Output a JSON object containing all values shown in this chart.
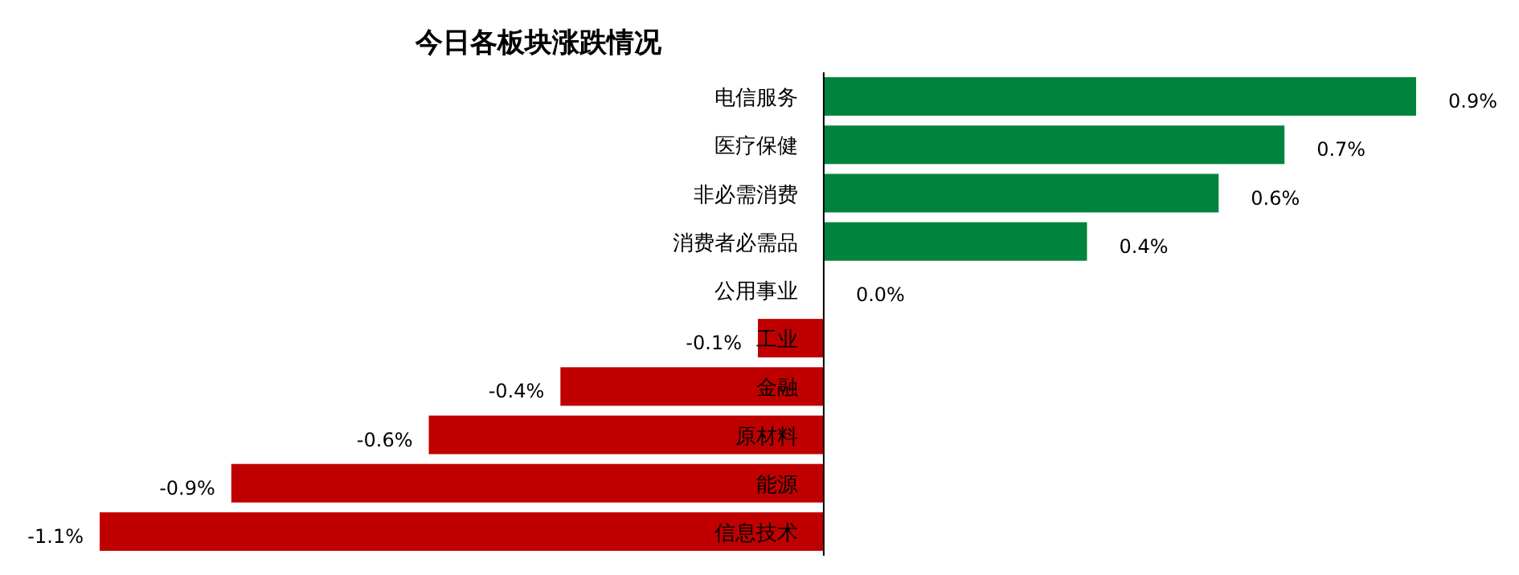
{
  "chart_data": {
    "type": "bar",
    "orientation": "horizontal",
    "title": "今日各板块涨跌情况",
    "categories": [
      "电信服务",
      "医疗保健",
      "非必需消费",
      "消费者必需品",
      "公用事业",
      "工业",
      "金融",
      "原材料",
      "能源",
      "信息技术"
    ],
    "values": [
      0.9,
      0.7,
      0.6,
      0.4,
      0.0,
      -0.1,
      -0.4,
      -0.6,
      -0.9,
      -1.1
    ],
    "colors": [
      "#00843d",
      "#00843d",
      "#00843d",
      "#00843d",
      "#00843d",
      "#c00000",
      "#c00000",
      "#c00000",
      "#c00000",
      "#c00000"
    ],
    "value_labels": [
      "0.9%",
      "0.7%",
      "0.6%",
      "0.4%",
      "0.0%",
      "-0.1%",
      "-0.4%",
      "-0.6%",
      "-0.9%",
      "-1.1%"
    ]
  }
}
